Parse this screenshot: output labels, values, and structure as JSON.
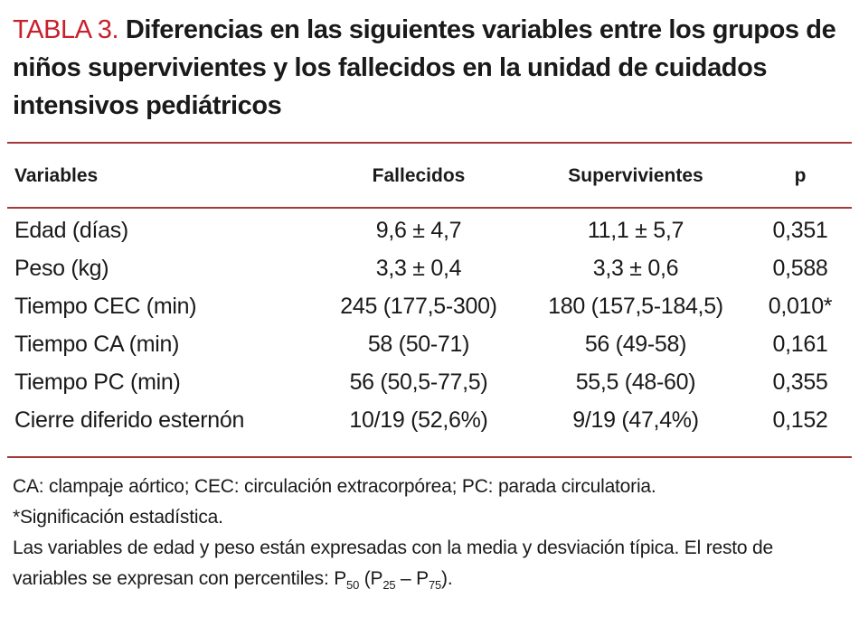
{
  "header": {
    "label": "TABLA 3.",
    "title": "Diferencias en las siguientes variables entre los grupos de niños supervivientes y los fallecidos en la unidad de cuidados intensivos pediátricos"
  },
  "table": {
    "columns": [
      "Variables",
      "Fallecidos",
      "Supervivientes",
      "p"
    ],
    "rows": [
      [
        "Edad (días)",
        "9,6 ± 4,7",
        "11,1 ± 5,7",
        "0,351"
      ],
      [
        "Peso (kg)",
        "3,3 ± 0,4",
        "3,3 ± 0,6",
        "0,588"
      ],
      [
        "Tiempo CEC (min)",
        "245 (177,5-300)",
        "180 (157,5-184,5)",
        "0,010*"
      ],
      [
        "Tiempo CA (min)",
        "58 (50-71)",
        "56 (49-58)",
        "0,161"
      ],
      [
        "Tiempo PC (min)",
        "56 (50,5-77,5)",
        "55,5 (48-60)",
        "0,355"
      ],
      [
        "Cierre diferido esternón",
        "10/19 (52,6%)",
        "9/19 (47,4%)",
        "0,152"
      ]
    ]
  },
  "notes": {
    "abbreviations": "CA: clampaje aórtico; CEC: circulación extracorpórea; PC: parada circulatoria.",
    "significance": "*Significación estadística.",
    "method": "Las variables de edad y peso están expresadas con la media y desviación típica. El resto de variables se expresan con percentiles: ",
    "formula": [
      [
        "P",
        "50",
        " ("
      ],
      [
        "P",
        "25",
        " – "
      ],
      [
        "P",
        "75",
        ")."
      ]
    ]
  }
}
